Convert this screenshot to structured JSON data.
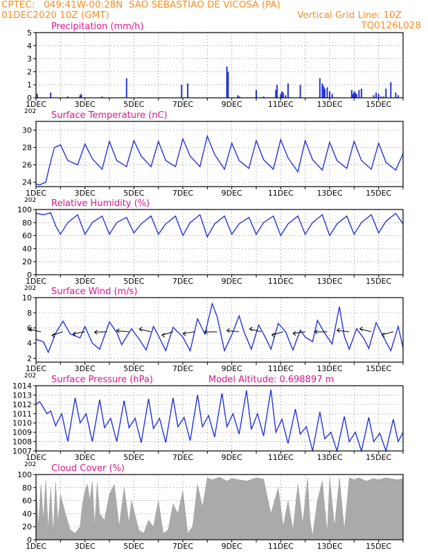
{
  "header": {
    "line1_left": "CPTEC:   049:41W-00:28N  SAO SEBASTIAO DE VICOSA (PA)",
    "line2_left": "01DEC2020 10Z (GMT)",
    "line2_right": "Vertical Grid Line: 10Z",
    "line3_right": "TQ0126L028"
  },
  "x_axis": {
    "tick_labels": [
      "1DEC",
      "3DEC",
      "5DEC",
      "7DEC",
      "9DEC",
      "11DEC",
      "13DEC",
      "15DEC"
    ],
    "year_fragment": "202",
    "days": 15
  },
  "colors": {
    "line": "#2233dd",
    "bar": "#2233dd",
    "cloud": "#aaaaaa",
    "title": "#e0148c",
    "header": "#ff8c1a"
  },
  "chart_data": [
    {
      "id": "precip",
      "type": "bar",
      "title": "Precipitation (mm/h)",
      "ylim": [
        0,
        5
      ],
      "yticks": [
        0,
        1,
        2,
        3,
        4,
        5
      ],
      "x_day": [
        0.05,
        0.6,
        1.3,
        1.8,
        1.85,
        2.7,
        3.7,
        5.95,
        6.2,
        7.8,
        7.85,
        8.25,
        8.3,
        9.0,
        9.3,
        9.8,
        9.85,
        10.0,
        10.05,
        10.1,
        10.2,
        10.3,
        10.8,
        11.6,
        11.7,
        11.75,
        11.8,
        11.9,
        12.0,
        12.1,
        12.9,
        12.95,
        13.0,
        13.05,
        13.1,
        13.2,
        13.3,
        13.8,
        13.9,
        14.0,
        14.1,
        14.2,
        14.3,
        14.5,
        14.7,
        14.8
      ],
      "values": [
        0.3,
        0.4,
        0.1,
        0.2,
        0.3,
        0.1,
        1.5,
        1.0,
        1.1,
        2.4,
        2.0,
        0.2,
        0.1,
        0.6,
        0.1,
        0.6,
        1.0,
        0.3,
        0.5,
        0.4,
        0.2,
        1.1,
        1.0,
        1.5,
        1.1,
        0.9,
        0.7,
        0.8,
        0.5,
        0.3,
        0.6,
        0.3,
        0.5,
        0.4,
        0.3,
        0.6,
        0.7,
        0.2,
        0.4,
        0.3,
        0.1,
        0.1,
        0.7,
        1.2,
        0.4,
        0.2
      ]
    },
    {
      "id": "temp",
      "type": "line",
      "title": "Surface Temperature (nC)",
      "ylim": [
        23.5,
        31
      ],
      "yticks": [
        24,
        26,
        28,
        30
      ],
      "x_day": [
        0,
        0.15,
        0.4,
        0.55,
        0.75,
        1.0,
        1.3,
        1.7,
        2.0,
        2.3,
        2.7,
        3.0,
        3.3,
        3.7,
        4.0,
        4.3,
        4.7,
        5.0,
        5.3,
        5.7,
        6.0,
        6.3,
        6.7,
        7.0,
        7.3,
        7.7,
        8.0,
        8.3,
        8.7,
        9.0,
        9.3,
        9.7,
        10.0,
        10.3,
        10.7,
        11.0,
        11.3,
        11.7,
        12.0,
        12.3,
        12.7,
        13.0,
        13.3,
        13.7,
        14.0,
        14.3,
        14.7,
        15.0
      ],
      "values": [
        23.8,
        23.7,
        24.0,
        25.8,
        28.0,
        28.3,
        26.5,
        26.0,
        28.4,
        26.7,
        25.5,
        28.7,
        26.5,
        25.8,
        28.8,
        27.0,
        25.8,
        28.7,
        26.5,
        25.8,
        29.0,
        27.0,
        25.8,
        29.3,
        27.2,
        25.5,
        28.5,
        26.5,
        25.6,
        28.8,
        26.6,
        25.5,
        28.9,
        26.8,
        25.2,
        28.8,
        26.6,
        25.4,
        28.6,
        26.5,
        25.6,
        28.7,
        26.5,
        25.5,
        28.5,
        26.3,
        25.4,
        27.3
      ]
    },
    {
      "id": "rh",
      "type": "line",
      "title": "Relative Humidity (%)",
      "ylim": [
        0,
        100
      ],
      "yticks": [
        0,
        20,
        40,
        60,
        80,
        100
      ],
      "x_day": [
        0,
        0.3,
        0.6,
        0.8,
        1.0,
        1.3,
        1.7,
        2.0,
        2.3,
        2.7,
        3.0,
        3.3,
        3.7,
        4.0,
        4.3,
        4.7,
        5.0,
        5.3,
        5.7,
        6.0,
        6.3,
        6.7,
        7.0,
        7.3,
        7.7,
        8.0,
        8.3,
        8.7,
        9.0,
        9.3,
        9.7,
        10.0,
        10.3,
        10.7,
        11.0,
        11.3,
        11.7,
        12.0,
        12.3,
        12.7,
        13.0,
        13.3,
        13.7,
        14.0,
        14.3,
        14.7,
        15.0
      ],
      "values": [
        94,
        92,
        95,
        75,
        62,
        80,
        92,
        62,
        80,
        90,
        62,
        80,
        88,
        64,
        78,
        90,
        62,
        78,
        90,
        60,
        80,
        92,
        58,
        78,
        90,
        62,
        78,
        88,
        62,
        80,
        90,
        60,
        78,
        90,
        62,
        80,
        92,
        60,
        78,
        90,
        62,
        80,
        92,
        64,
        82,
        94,
        78
      ]
    },
    {
      "id": "wind",
      "type": "line",
      "title": "Surface Wind (m/s)",
      "ylim": [
        1.5,
        10
      ],
      "yticks": [
        2,
        4,
        6,
        8,
        10
      ],
      "x_day": [
        0,
        0.3,
        0.5,
        0.8,
        1.1,
        1.4,
        1.8,
        2.0,
        2.3,
        2.6,
        3.0,
        3.3,
        3.5,
        3.9,
        4.2,
        4.5,
        4.8,
        5.0,
        5.3,
        5.6,
        6.0,
        6.3,
        6.6,
        6.9,
        7.2,
        7.4,
        7.7,
        8.0,
        8.3,
        8.5,
        8.8,
        9.1,
        9.4,
        9.6,
        9.9,
        10.2,
        10.5,
        10.8,
        11.0,
        11.3,
        11.5,
        11.8,
        12.1,
        12.4,
        12.6,
        12.8,
        13.1,
        13.4,
        13.6,
        13.9,
        14.2,
        14.5,
        14.8,
        15.0
      ],
      "values": [
        4.5,
        4.2,
        2.8,
        5.3,
        6.9,
        5.2,
        4.7,
        6.2,
        4.0,
        3.2,
        6.8,
        5.4,
        3.8,
        5.9,
        4.6,
        3.1,
        6.2,
        5.0,
        3.0,
        6.1,
        4.8,
        3.0,
        7.2,
        5.2,
        9.2,
        7.5,
        3.0,
        5.1,
        7.6,
        5.5,
        3.2,
        6.4,
        4.6,
        3.2,
        6.6,
        5.5,
        3.1,
        5.7,
        4.8,
        4.2,
        7.0,
        5.3,
        3.9,
        8.8,
        4.9,
        3.2,
        5.9,
        4.6,
        3.3,
        6.7,
        4.8,
        3.0,
        6.2,
        3.4
      ]
    },
    {
      "id": "pressure",
      "type": "line",
      "title": "Surface Pressure (hPa)",
      "annotation": "Model Altitude: 0.698897  m",
      "ylim": [
        1007,
        1014
      ],
      "yticks": [
        1007,
        1008,
        1009,
        1010,
        1011,
        1012,
        1013,
        1014
      ],
      "x_day": [
        0,
        0.15,
        0.45,
        0.6,
        0.8,
        1.05,
        1.3,
        1.6,
        1.8,
        2.05,
        2.3,
        2.6,
        2.8,
        3.05,
        3.3,
        3.6,
        3.8,
        4.05,
        4.3,
        4.6,
        4.8,
        5.05,
        5.3,
        5.6,
        5.8,
        6.05,
        6.3,
        6.6,
        6.8,
        7.05,
        7.3,
        7.6,
        7.8,
        8.05,
        8.3,
        8.6,
        8.8,
        9.05,
        9.3,
        9.6,
        9.8,
        10.05,
        10.3,
        10.6,
        10.8,
        11.05,
        11.3,
        11.6,
        11.8,
        12.05,
        12.3,
        12.6,
        12.8,
        13.05,
        13.3,
        13.6,
        13.8,
        14.05,
        14.3,
        14.6,
        14.8,
        15.0
      ],
      "values": [
        1012.0,
        1012.3,
        1011.0,
        1011.3,
        1009.7,
        1011.0,
        1008.0,
        1012.7,
        1010.0,
        1011.0,
        1008.0,
        1012.5,
        1009.5,
        1010.5,
        1008.0,
        1012.4,
        1009.5,
        1010.5,
        1007.9,
        1012.6,
        1009.4,
        1010.5,
        1007.9,
        1012.7,
        1009.6,
        1010.6,
        1008.1,
        1013.0,
        1009.6,
        1010.8,
        1008.5,
        1013.2,
        1009.6,
        1011.0,
        1008.8,
        1013.5,
        1009.3,
        1011.0,
        1008.6,
        1013.6,
        1009.0,
        1010.4,
        1007.8,
        1011.5,
        1008.8,
        1009.6,
        1007.0,
        1011.2,
        1008.3,
        1009.0,
        1007.0,
        1010.7,
        1008.0,
        1009.0,
        1007.0,
        1010.6,
        1008.0,
        1008.9,
        1007.0,
        1010.4,
        1008.0,
        1009.0
      ]
    },
    {
      "id": "cloud",
      "type": "area",
      "title": "Cloud Cover (%)",
      "ylim": [
        0,
        100
      ],
      "yticks": [
        0,
        20,
        40,
        60,
        80,
        100
      ],
      "x_day": [
        0,
        0.1,
        0.2,
        0.3,
        0.4,
        0.5,
        0.6,
        0.7,
        0.8,
        0.9,
        1.0,
        1.2,
        1.4,
        1.6,
        1.8,
        1.9,
        2.0,
        2.1,
        2.2,
        2.3,
        2.4,
        2.5,
        2.6,
        2.8,
        3.0,
        3.2,
        3.4,
        3.6,
        3.8,
        3.9,
        4.0,
        4.2,
        4.4,
        4.6,
        4.8,
        5.0,
        5.2,
        5.4,
        5.6,
        5.8,
        6.0,
        6.2,
        6.4,
        6.6,
        6.8,
        7.0,
        7.2,
        7.5,
        7.8,
        8.0,
        8.3,
        8.6,
        9.0,
        9.3,
        9.6,
        9.9,
        10.1,
        10.3,
        10.5,
        10.7,
        10.9,
        11.1,
        11.2,
        11.3,
        11.5,
        11.7,
        11.9,
        12.0,
        12.2,
        12.4,
        12.6,
        12.8,
        13.0,
        13.2,
        13.5,
        13.8,
        14.0,
        14.3,
        14.6,
        14.8,
        15.0
      ],
      "values": [
        90,
        20,
        85,
        30,
        92,
        15,
        80,
        10,
        88,
        25,
        70,
        40,
        15,
        10,
        20,
        55,
        75,
        85,
        60,
        90,
        20,
        88,
        40,
        30,
        70,
        85,
        20,
        80,
        25,
        60,
        45,
        15,
        10,
        30,
        20,
        60,
        10,
        15,
        55,
        40,
        75,
        10,
        20,
        85,
        50,
        95,
        92,
        96,
        90,
        94,
        92,
        90,
        95,
        93,
        40,
        80,
        20,
        60,
        15,
        85,
        25,
        95,
        30,
        5,
        60,
        90,
        10,
        95,
        20,
        95,
        15,
        95,
        92,
        95,
        90,
        94,
        92,
        95,
        93,
        92,
        94
      ]
    }
  ]
}
